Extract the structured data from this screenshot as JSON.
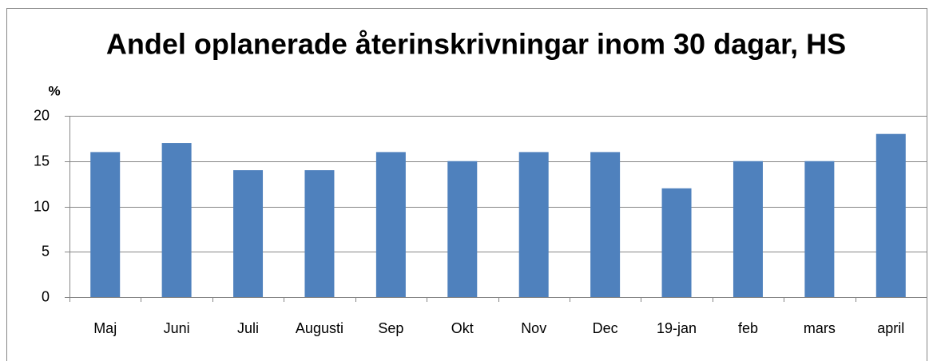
{
  "chart_data": {
    "type": "bar",
    "title": "Andel oplanerade återinskrivningar inom 30 dagar, HS",
    "y_label": "%",
    "categories": [
      "Maj",
      "Juni",
      "Juli",
      "Augusti",
      "Sep",
      "Okt",
      "Nov",
      "Dec",
      "19-jan",
      "feb",
      "mars",
      "april"
    ],
    "values": [
      16,
      17,
      14,
      14,
      16,
      15,
      16,
      16,
      12,
      15,
      15,
      18
    ],
    "color": "#4f81bd",
    "ylim": [
      0,
      20
    ],
    "yticks": [
      0,
      5,
      10,
      15,
      20
    ],
    "grid": true
  }
}
